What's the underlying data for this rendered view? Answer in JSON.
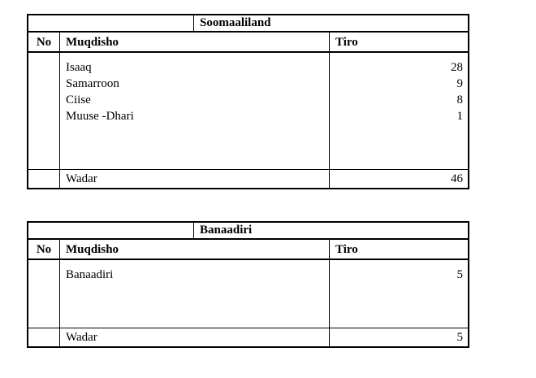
{
  "colors": {
    "background": "#ffffff",
    "text": "#000000",
    "border": "#000000"
  },
  "tables": [
    {
      "title": "Soomaaliland",
      "columns": {
        "no": "No",
        "muqdisho": "Muqdisho",
        "tiro": "Tiro"
      },
      "rows": [
        {
          "name": "Isaaq",
          "tiro": "28"
        },
        {
          "name": "Samarroon",
          "tiro": "9"
        },
        {
          "name": "Ciise",
          "tiro": "8"
        },
        {
          "name": "Muuse -Dhari",
          "tiro": "1"
        }
      ],
      "footer": {
        "label": "Wadar",
        "total": "46"
      }
    },
    {
      "title": "Banaadiri",
      "columns": {
        "no": "No",
        "muqdisho": "Muqdisho",
        "tiro": "Tiro"
      },
      "rows": [
        {
          "name": "Banaadiri",
          "tiro": "5"
        }
      ],
      "footer": {
        "label": "Wadar",
        "total": "5"
      }
    }
  ]
}
